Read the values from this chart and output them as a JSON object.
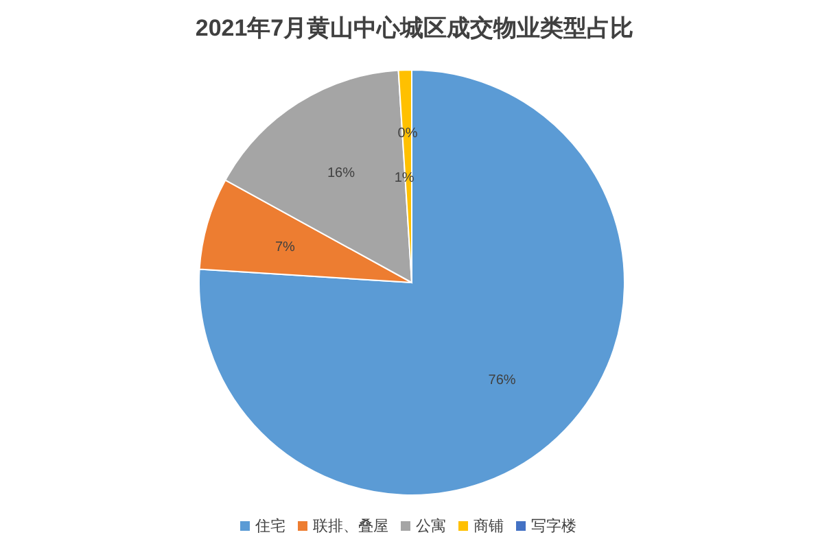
{
  "chart_data": {
    "type": "pie",
    "title": "2021年7月黄山中心城区成交物业类型占比",
    "categories": [
      "住宅",
      "联排、叠屋",
      "公寓",
      "商铺",
      "写字楼"
    ],
    "values": [
      76,
      7,
      16,
      1,
      0
    ],
    "colors": [
      "#5b9bd5",
      "#ed7d31",
      "#a5a5a5",
      "#ffc000",
      "#4472c4"
    ],
    "value_labels": [
      "76%",
      "7%",
      "16%",
      "1%",
      "0%"
    ],
    "legend": "bottom"
  }
}
